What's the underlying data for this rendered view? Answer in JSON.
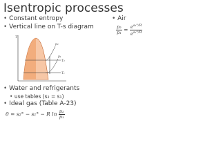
{
  "title": "Isentropic processes",
  "bullets": [
    "Constant entropy",
    "Vertical line on T-s diagram",
    "Water and refrigerants",
    "Ideal gas (Table A-23)"
  ],
  "sub_bullet": "use tables (s₂ = s₁)",
  "air": {
    "label": "Air",
    "lhs_num": "p₂",
    "lhs_den": "p₁",
    "equals": "=",
    "base": "e",
    "num_exp": "s₂°/R",
    "den_exp": "s₁°/R"
  },
  "ideal_gas_equation": {
    "text": "0 = s₂° − s₁° − R ln",
    "num": "p₂",
    "den": "p₁"
  },
  "diagram": {
    "y_axis": "T",
    "x_axis": "s",
    "labels": [
      "p₂",
      "p₁",
      "T₂",
      "T₁"
    ]
  }
}
